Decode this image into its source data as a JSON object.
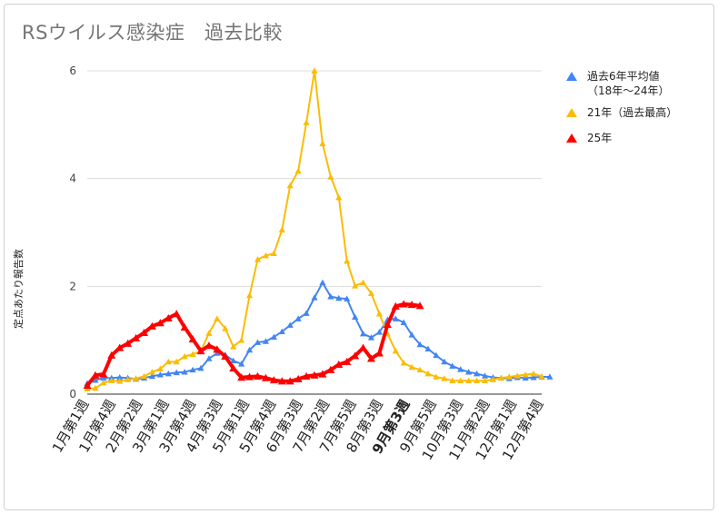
{
  "title": "RSウイルス感染症　過去比較",
  "chart_data": {
    "type": "line",
    "title": "RSウイルス感染症　過去比較",
    "ylabel": "定点あたり報告数",
    "xlabel": "",
    "ylim": [
      0,
      6
    ],
    "yticks": [
      "0",
      "2",
      "4",
      "6"
    ],
    "grid": true,
    "legend_position": "right",
    "x_tick_labels": [
      "1月第1週",
      "1月第4週",
      "2月第2週",
      "3月第1週",
      "3月第4週",
      "4月第3週",
      "5月第1週",
      "5月第4週",
      "6月第3週",
      "7月第2週",
      "7月第5週",
      "8月第3週",
      "9月第3週",
      "9月第5週",
      "10月第3週",
      "11月第2週",
      "12月第1週",
      "12月第4週"
    ],
    "highlight_label": "9月第3週",
    "highlight_color": "#e06666",
    "series": [
      {
        "name": "過去6年平均値",
        "name_line2": "（18年〜24年）",
        "color": "#4285f4",
        "values": [
          0.2,
          0.26,
          0.3,
          0.3,
          0.31,
          0.3,
          0.28,
          0.3,
          0.33,
          0.36,
          0.38,
          0.4,
          0.41,
          0.45,
          0.48,
          0.66,
          0.76,
          0.73,
          0.62,
          0.56,
          0.82,
          0.96,
          0.98,
          1.06,
          1.16,
          1.28,
          1.4,
          1.5,
          1.79,
          2.07,
          1.81,
          1.78,
          1.77,
          1.43,
          1.12,
          1.05,
          1.15,
          1.38,
          1.4,
          1.33,
          1.1,
          0.92,
          0.84,
          0.72,
          0.6,
          0.52,
          0.46,
          0.41,
          0.38,
          0.34,
          0.31,
          0.3,
          0.29,
          0.31,
          0.3,
          0.31,
          0.32,
          0.32
        ]
      },
      {
        "name": "21年（過去最高）",
        "color": "#fbbc04",
        "values": [
          0.1,
          0.11,
          0.21,
          0.25,
          0.24,
          0.27,
          0.29,
          0.33,
          0.41,
          0.47,
          0.6,
          0.6,
          0.7,
          0.74,
          0.8,
          1.13,
          1.4,
          1.22,
          0.88,
          1.0,
          1.83,
          2.5,
          2.57,
          2.61,
          3.05,
          3.87,
          4.14,
          5.04,
          6.0,
          4.65,
          4.03,
          3.65,
          2.47,
          2.01,
          2.07,
          1.87,
          1.49,
          1.12,
          0.8,
          0.58,
          0.5,
          0.45,
          0.38,
          0.32,
          0.29,
          0.25,
          0.25,
          0.25,
          0.25,
          0.25,
          0.27,
          0.3,
          0.32,
          0.34,
          0.36,
          0.38,
          0.33
        ]
      },
      {
        "name": "25年",
        "color": "#ff0000",
        "values": [
          0.16,
          0.35,
          0.37,
          0.72,
          0.86,
          0.94,
          1.04,
          1.14,
          1.26,
          1.32,
          1.41,
          1.49,
          1.24,
          1.02,
          0.8,
          0.9,
          0.83,
          0.7,
          0.48,
          0.31,
          0.32,
          0.33,
          0.3,
          0.26,
          0.24,
          0.24,
          0.28,
          0.33,
          0.35,
          0.37,
          0.45,
          0.55,
          0.6,
          0.71,
          0.86,
          0.66,
          0.76,
          1.29,
          1.63,
          1.67,
          1.66,
          1.64
        ]
      }
    ]
  }
}
